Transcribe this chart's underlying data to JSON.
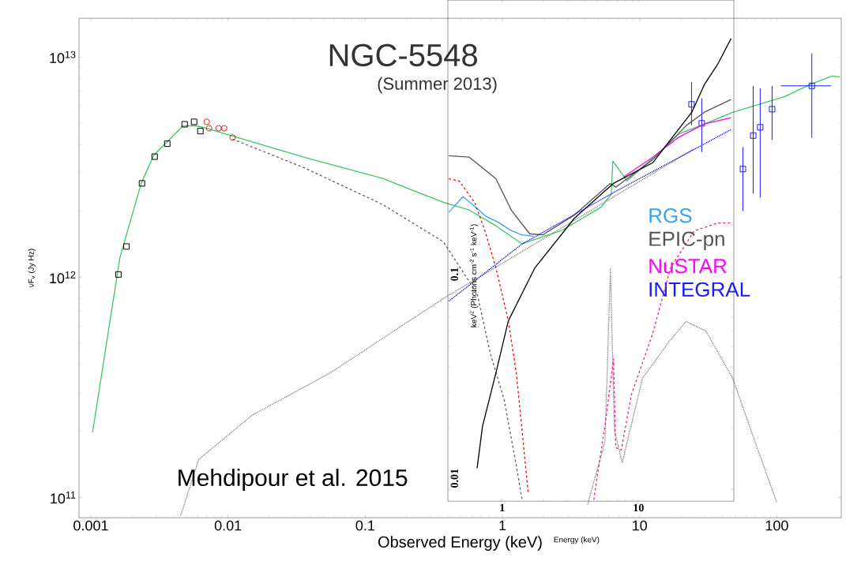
{
  "chart_data": [
    {
      "type": "line",
      "title": "NGC-5548",
      "subtitle": "(Summer 2013)",
      "xlabel": "Observed Energy (keV)",
      "ylabel": "νF$_{ν}$ (Jy Hz)",
      "annotations": [
        "Mehdipour et al. 2015"
      ],
      "log": "xy",
      "xlim": [
        0.00082,
        295
      ],
      "ylim": [
        81000000000.0,
        15000000000000.0
      ],
      "xticks": [
        0.001,
        0.01,
        0.1,
        1,
        10,
        100
      ],
      "yticks": [
        {
          "value": 100000000000.0,
          "label": "10$^{11}$"
        },
        {
          "value": 1000000000000.0,
          "label": "10$^{12}$"
        },
        {
          "value": 10000000000000.0,
          "label": "10$^{13}$"
        }
      ],
      "legend": "right",
      "series": [
        {
          "type": "line",
          "color": "#3cc864",
          "line_style": "solid",
          "marker": "none",
          "x": [
            0.00103,
            0.00163,
            0.00233,
            0.00288,
            0.00361,
            0.0047,
            0.00589,
            0.007,
            0.0108,
            0.0356,
            0.134,
            0.371,
            0.574,
            0.9,
            1.39,
            2.7,
            5.23,
            6.21,
            6.38,
            8.09,
            12.7,
            19.6,
            30.4,
            47.7,
            114,
            179,
            253,
            288
          ],
          "values": [
            198000000000.0,
            1230000000000.0,
            2670000000000.0,
            3590000000000.0,
            4130000000000.0,
            4870000000000.0,
            4870000000000.0,
            4750000000000.0,
            4380000000000.0,
            3510000000000.0,
            2810000000000.0,
            2190000000000.0,
            2020000000000.0,
            1710000000000.0,
            1420000000000.0,
            1630000000000.0,
            2080000000000.0,
            2380000000000.0,
            3370000000000.0,
            2740000000000.0,
            3510000000000.0,
            4490000000000.0,
            5000000000000.0,
            5610000000000.0,
            6620000000000.0,
            7550000000000.0,
            8200000000000.0,
            8130000000000.0
          ]
        },
        {
          "type": "scatter",
          "color": "#000000",
          "marker": "square",
          "x": [
            0.00159,
            0.00182,
            0.00236,
            0.00292,
            0.00361,
            0.00483,
            0.00566,
            0.00629
          ],
          "values": [
            1030000000000.0,
            1380000000000.0,
            2670000000000.0,
            3530000000000.0,
            4040000000000.0,
            4950000000000.0,
            5080000000000.0,
            4610000000000.0
          ]
        },
        {
          "type": "scatter",
          "color": "#ff0000",
          "marker": "circle",
          "x": [
            0.007,
            0.00728,
            0.00853,
            0.00936,
            0.0108
          ],
          "values": [
            5080000000000.0,
            4750000000000.0,
            4750000000000.0,
            4750000000000.0,
            4310000000000.0
          ]
        },
        {
          "type": "line",
          "color": "#606060",
          "line_style": "dashed",
          "marker": "none",
          "x": [
            0.0108,
            0.0356,
            0.134,
            0.371,
            0.655,
            0.82,
            1.03,
            1.27,
            1.39
          ],
          "values": [
            4240000000000.0,
            3150000000000.0,
            2140000000000.0,
            1450000000000.0,
            841000000000.0,
            446000000000.0,
            278000000000.0,
            137000000000.0,
            98000000000.0
          ]
        },
        {
          "type": "line",
          "color": "#808080",
          "line_style": "dotted",
          "marker": "none",
          "x": [
            0.00452,
            0.00612,
            0.0149,
            0.0559,
            0.21,
            0.386,
            24.6
          ],
          "values": [
            83000000000.0,
            149000000000.0,
            236000000000.0,
            369000000000.0,
            635000000000.0,
            813000000000.0,
            3810000000000.0
          ]
        },
        {
          "type": "line",
          "color": "#808080",
          "line_style": "dotted",
          "marker": "none",
          "x": [
            4.18,
            5.59,
            6.13,
            6.55,
            7.47,
            10.5,
            16.5,
            21.8,
            30.4,
            47.7,
            73.8,
            100
          ],
          "values": [
            93000000000.0,
            179000000000.0,
            1100000000000.0,
            203000000000.0,
            144000000000.0,
            348000000000.0,
            513000000000.0,
            630000000000.0,
            571000000000.0,
            348000000000.0,
            161000000000.0,
            95000000000.0
          ]
        },
        {
          "type": "scatter",
          "name": "INTEGRAL",
          "color": "#1a1aff",
          "marker": "square",
          "x": [
            23.9,
            28.4,
            56.6,
            67.3,
            75.7,
            92.4,
            180
          ],
          "values": [
            6100000000000.0,
            5000000000000.0,
            3100000000000.0,
            4400000000000.0,
            4800000000000.0,
            5800000000000.0,
            7400000000000.0
          ],
          "errors": [
            [
              4900000000000.0,
              7700000000000.0
            ],
            [
              3700000000000.0,
              6500000000000.0
            ],
            [
              2000000000000.0,
              3900000000000.0
            ],
            [
              2400000000000.0,
              7400000000000.0
            ],
            [
              2300000000000.0,
              7200000000000.0
            ],
            [
              4200000000000.0,
              7400000000000.0
            ],
            [
              4300000000000.0,
              10400000000000.0
            ]
          ],
          "xerrors": [
            null,
            null,
            null,
            null,
            null,
            null,
            [
              107,
              249
            ]
          ]
        }
      ]
    },
    {
      "type": "line",
      "xlabel": "Energy (keV)",
      "ylabel": "keV$^{2}$ (Photons cm$^{-2}$ s$^{-1}$ keV$^{-1}$)",
      "log": "xy",
      "xlim": [
        0.4,
        50
      ],
      "ylim": [
        0.00875,
        2.5
      ],
      "xticks": [
        1,
        10
      ],
      "yticks": [
        0.01,
        0.1
      ],
      "legend": "right",
      "series": [
        {
          "name": "RGS",
          "color": "#3aa0f0",
          "line_style": "solid",
          "x": [
            0.406,
            0.516,
            0.629,
            0.768,
            0.936,
            1.14,
            1.39,
            1.7
          ],
          "values": [
            0.228,
            0.272,
            0.244,
            0.217,
            0.204,
            0.187,
            0.177,
            0.174
          ]
        },
        {
          "name": "EPIC-pn",
          "color": "#555555",
          "line_style": "solid",
          "x": [
            0.406,
            0.574,
            0.9,
            1.17,
            1.59,
            1.99,
            3.38,
            6.21,
            6.81,
            12.7,
            22.4,
            30.4,
            47.7
          ],
          "values": [
            0.432,
            0.425,
            0.333,
            0.233,
            0.179,
            0.177,
            0.221,
            0.316,
            0.303,
            0.413,
            0.607,
            0.706,
            0.815
          ]
        },
        {
          "name": "NuSTAR",
          "color": "#ff00ff",
          "line_style": "solid",
          "x": [
            7.78,
            12.7,
            19.6,
            30.4,
            47.7
          ],
          "values": [
            0.34,
            0.425,
            0.531,
            0.618,
            0.664
          ]
        },
        {
          "color": "#000000",
          "line_style": "solid",
          "x": [
            0.655,
            0.718,
            0.9,
            1.11,
            1.74,
            3.38,
            6.55,
            12.7,
            24.6,
            30.4,
            38.0,
            47.7
          ],
          "values": [
            0.0127,
            0.0204,
            0.0372,
            0.067,
            0.122,
            0.213,
            0.316,
            0.399,
            0.706,
            0.964,
            1.21,
            1.62
          ]
        },
        {
          "color": "#ff0000",
          "line_style": "dashed",
          "x": [
            0.406,
            0.483,
            0.629,
            0.748,
            0.9,
            1.11,
            1.27,
            1.39,
            1.55
          ],
          "values": [
            0.333,
            0.325,
            0.255,
            0.185,
            0.122,
            0.067,
            0.0372,
            0.0204,
            0.0097
          ]
        },
        {
          "color": "#0000ff",
          "line_style": "dotted",
          "x": [
            0.406,
            1.39,
            6.81,
            47.7
          ],
          "values": [
            0.0836,
            0.159,
            0.289,
            0.58
          ]
        },
        {
          "color": "#ff1493",
          "line_style": "dashed",
          "x": [
            4.7,
            5.74,
            6.55,
            6.81,
            7.47,
            8.88,
            12.7,
            17.2,
            25.6,
            38.0,
            47.7
          ],
          "values": [
            0.0089,
            0.0217,
            0.0436,
            0.016,
            0.0156,
            0.0292,
            0.058,
            0.122,
            0.185,
            0.202,
            0.202
          ]
        }
      ]
    }
  ]
}
